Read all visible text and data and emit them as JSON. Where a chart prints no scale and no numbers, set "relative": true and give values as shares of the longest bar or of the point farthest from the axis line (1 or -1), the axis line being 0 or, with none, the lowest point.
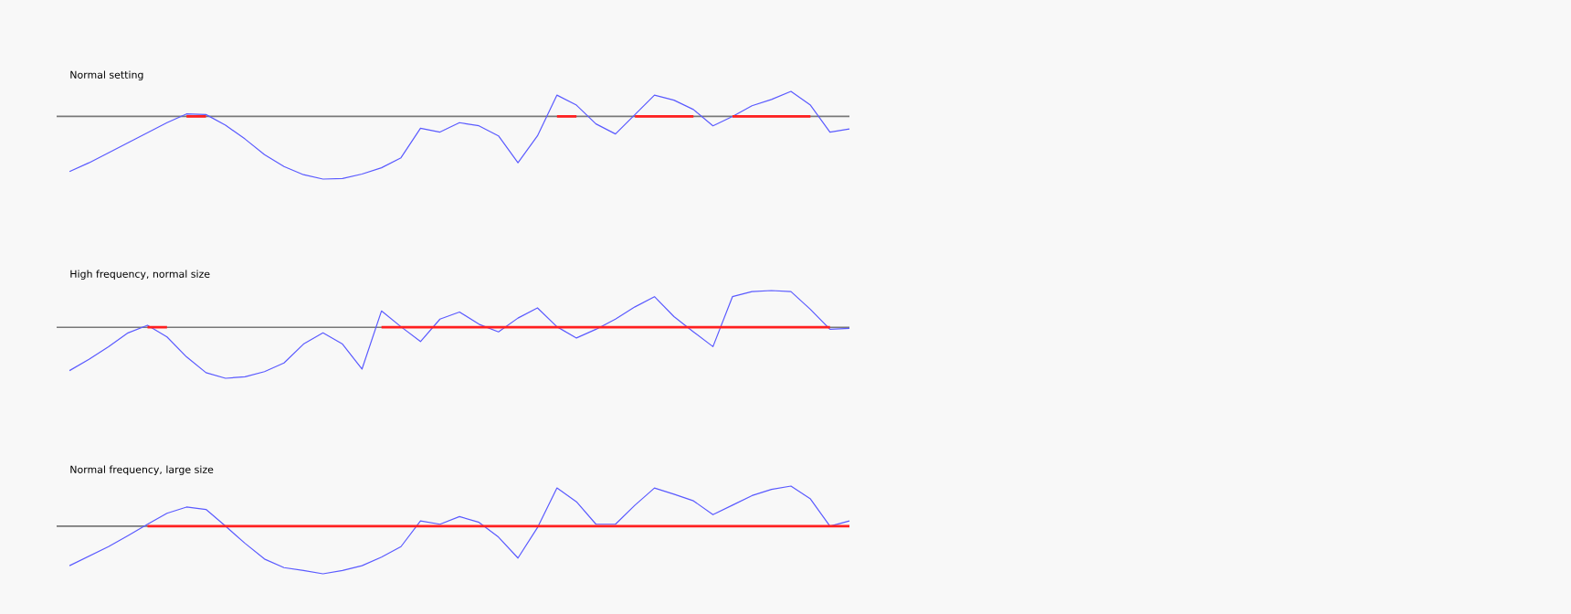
{
  "chart_data": [
    {
      "type": "line",
      "title": "Normal setting",
      "relative": true,
      "categories": [
        null,
        null,
        null,
        null,
        null,
        null,
        null,
        null,
        null,
        null,
        null,
        null,
        null,
        null,
        null,
        null,
        null,
        null,
        null,
        null,
        null,
        null,
        null,
        null,
        null,
        null,
        null,
        null,
        null,
        null,
        null,
        null,
        null,
        null,
        null,
        null,
        null,
        null,
        null,
        null,
        null
      ],
      "series": [
        {
          "color": "#5a5aff",
          "values": [
            -0.88,
            -0.74,
            -0.58,
            -0.42,
            -0.26,
            -0.1,
            0.04,
            0.03,
            -0.14,
            -0.36,
            -0.61,
            -0.8,
            -0.93,
            -1.0,
            -0.99,
            -0.92,
            -0.82,
            -0.66,
            -0.19,
            -0.25,
            -0.1,
            -0.15,
            -0.31,
            -0.74,
            -0.31,
            0.34,
            0.18,
            -0.12,
            -0.28,
            0.03,
            0.34,
            0.26,
            0.11,
            -0.15,
            0.0,
            0.17,
            0.27,
            0.4,
            0.18,
            -0.25,
            -0.2
          ]
        },
        {
          "color": "#ff2020",
          "values": [
            null,
            null,
            null,
            null,
            null,
            null,
            0,
            0,
            null,
            null,
            null,
            null,
            null,
            null,
            null,
            null,
            null,
            null,
            null,
            null,
            null,
            null,
            null,
            null,
            null,
            0,
            0,
            null,
            null,
            0,
            0,
            0,
            0,
            null,
            0,
            0,
            0,
            0,
            0,
            null,
            null
          ]
        }
      ]
    },
    {
      "type": "line",
      "title": "High frequency, normal size",
      "relative": true,
      "categories": [
        null,
        null,
        null,
        null,
        null,
        null,
        null,
        null,
        null,
        null,
        null,
        null,
        null,
        null,
        null,
        null,
        null,
        null,
        null,
        null,
        null,
        null,
        null,
        null,
        null,
        null,
        null,
        null,
        null,
        null,
        null,
        null,
        null,
        null,
        null,
        null,
        null,
        null,
        null,
        null,
        null
      ],
      "series": [
        {
          "color": "#5a5aff",
          "values": [
            -0.85,
            -0.63,
            -0.38,
            -0.11,
            0.04,
            -0.19,
            -0.58,
            -0.89,
            -1.0,
            -0.97,
            -0.87,
            -0.7,
            -0.33,
            -0.11,
            -0.33,
            -0.82,
            0.32,
            0.01,
            -0.28,
            0.16,
            0.3,
            0.06,
            -0.09,
            0.18,
            0.38,
            0.01,
            -0.21,
            -0.04,
            0.16,
            0.4,
            0.6,
            0.21,
            -0.09,
            -0.38,
            0.6,
            0.7,
            0.72,
            0.7,
            0.35,
            -0.04,
            -0.02
          ]
        },
        {
          "color": "#ff2020",
          "values": [
            null,
            null,
            null,
            null,
            0,
            0,
            null,
            null,
            null,
            null,
            null,
            null,
            null,
            null,
            null,
            null,
            0,
            0,
            0,
            0,
            0,
            0,
            0,
            0,
            0,
            0,
            0,
            0,
            0,
            0,
            0,
            0,
            0,
            0,
            0,
            0,
            0,
            0,
            0,
            0,
            null
          ]
        }
      ]
    },
    {
      "type": "line",
      "title": "Normal frequency, large size",
      "relative": true,
      "categories": [
        null,
        null,
        null,
        null,
        null,
        null,
        null,
        null,
        null,
        null,
        null,
        null,
        null,
        null,
        null,
        null,
        null,
        null,
        null,
        null,
        null,
        null,
        null,
        null,
        null,
        null,
        null,
        null,
        null,
        null,
        null,
        null,
        null,
        null,
        null,
        null,
        null,
        null,
        null,
        null,
        null
      ],
      "series": [
        {
          "color": "#5a5aff",
          "values": [
            -0.83,
            -0.63,
            -0.43,
            -0.2,
            0.04,
            0.27,
            0.4,
            0.35,
            0.0,
            -0.36,
            -0.69,
            -0.87,
            -0.93,
            -1.0,
            -0.93,
            -0.83,
            -0.65,
            -0.43,
            0.11,
            0.04,
            0.2,
            0.08,
            -0.23,
            -0.67,
            -0.03,
            0.8,
            0.51,
            0.04,
            0.04,
            0.44,
            0.8,
            0.67,
            0.53,
            0.24,
            0.44,
            0.64,
            0.77,
            0.84,
            0.57,
            0.0,
            0.11
          ]
        },
        {
          "color": "#ff2020",
          "values": [
            null,
            null,
            null,
            null,
            0,
            0,
            0,
            0,
            0,
            0,
            0,
            0,
            0,
            0,
            0,
            0,
            0,
            0,
            0,
            0,
            0,
            0,
            0,
            0,
            0,
            0,
            0,
            0,
            0,
            0,
            0,
            0,
            0,
            0,
            0,
            0,
            0,
            0,
            0,
            0,
            0
          ]
        }
      ]
    }
  ]
}
